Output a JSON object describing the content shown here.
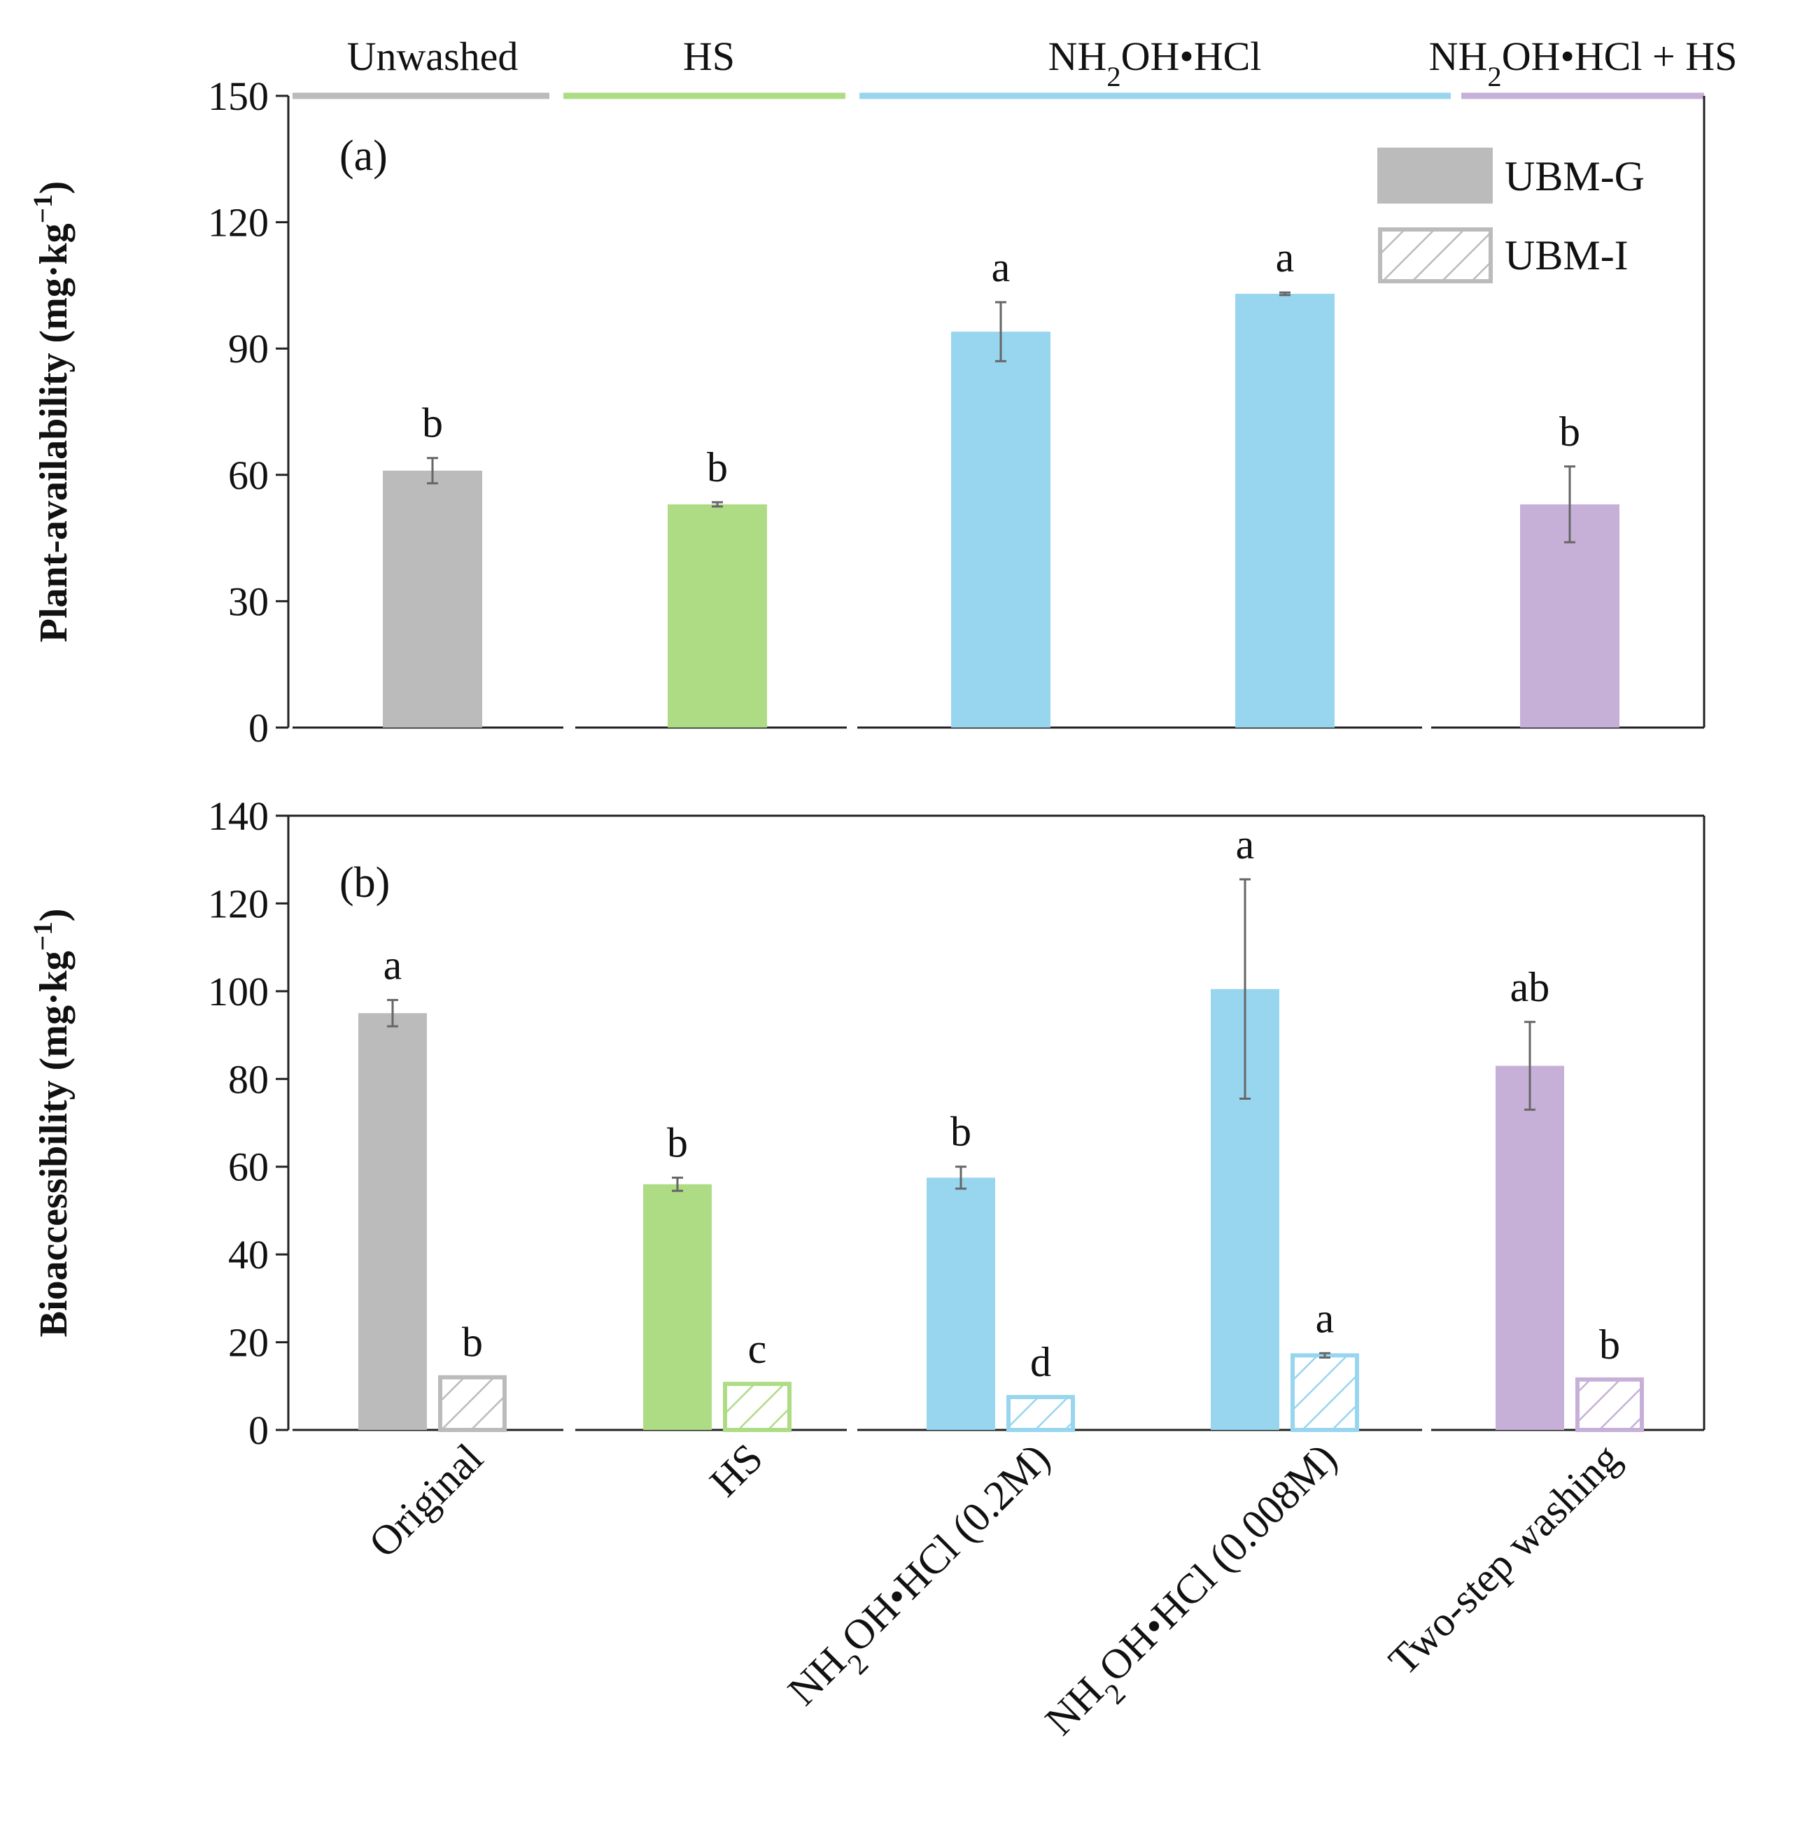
{
  "groups": [
    {
      "label": "Unwashed",
      "color": "#bbbbbb"
    },
    {
      "label": "HS",
      "color": "#aedc85"
    },
    {
      "label": "NH₂OH•HCl",
      "color": "#98d6ef"
    },
    {
      "label": "NH₂OH•HCl + HS",
      "color": "#c6b0d8"
    }
  ],
  "legend": {
    "solid": "UBM-G",
    "hatched": "UBM-I"
  },
  "chart_data": [
    {
      "type": "bar",
      "panel": "(a)",
      "title": "",
      "ylabel": "Plant-availability (mg·kg⁻¹)",
      "ylim": [
        0,
        150
      ],
      "yticks": [
        0,
        30,
        60,
        90,
        120,
        150
      ],
      "categories": [
        "Original",
        "HS",
        "NH₂OH•HCl (0.2M)",
        "NH₂OH•HCl (0.008M)",
        "Two-step washing"
      ],
      "colors": [
        "#bbbbbb",
        "#aedc85",
        "#98d6ef",
        "#98d6ef",
        "#c6b0d8"
      ],
      "series": [
        {
          "name": "Plant-availability",
          "values": [
            61,
            53,
            94,
            103,
            53
          ],
          "errors": [
            3,
            0.5,
            7,
            0.3,
            9
          ],
          "letters": [
            "b",
            "b",
            "a",
            "a",
            "b"
          ]
        }
      ]
    },
    {
      "type": "bar",
      "panel": "(b)",
      "title": "",
      "ylabel": "Bioaccessibility (mg·kg⁻¹)",
      "ylim": [
        0,
        140
      ],
      "yticks": [
        0,
        20,
        40,
        60,
        80,
        100,
        120,
        140
      ],
      "categories": [
        "Original",
        "HS",
        "NH₂OH•HCl (0.2M)",
        "NH₂OH•HCl (0.008M)",
        "Two-step washing"
      ],
      "colors": [
        "#bbbbbb",
        "#aedc85",
        "#98d6ef",
        "#98d6ef",
        "#c6b0d8"
      ],
      "series": [
        {
          "name": "UBM-G",
          "values": [
            95,
            56,
            57.5,
            100.5,
            83
          ],
          "errors": [
            3,
            1.5,
            2.5,
            25,
            10
          ],
          "letters": [
            "a",
            "b",
            "b",
            "a",
            "ab"
          ]
        },
        {
          "name": "UBM-I",
          "values": [
            12,
            10.5,
            7.5,
            17,
            11.5
          ],
          "errors": [
            0,
            0,
            0,
            0.5,
            0
          ],
          "letters": [
            "b",
            "c",
            "d",
            "a",
            "b"
          ]
        }
      ]
    }
  ]
}
